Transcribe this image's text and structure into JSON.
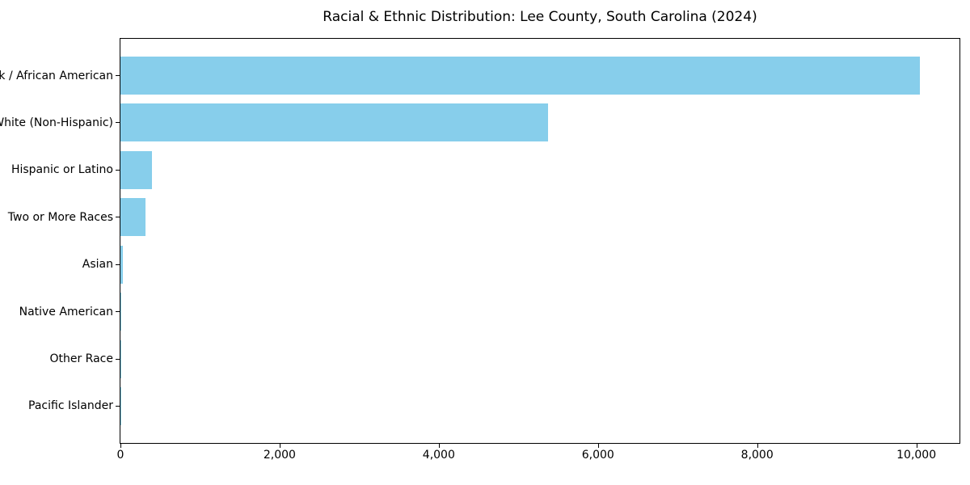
{
  "chart_data": {
    "type": "bar",
    "orientation": "horizontal",
    "title": "Racial & Ethnic Distribution: Lee County, South Carolina (2024)",
    "categories": [
      "Black / African American",
      "White (Non-Hispanic)",
      "Hispanic or Latino",
      "Two or More Races",
      "Asian",
      "Native American",
      "Other Race",
      "Pacific Islander"
    ],
    "values": [
      10040,
      5370,
      400,
      310,
      35,
      15,
      8,
      3
    ],
    "xlabel": "",
    "ylabel": "",
    "xlim": [
      0,
      10542
    ],
    "x_ticks": [
      0,
      2000,
      4000,
      6000,
      8000,
      10000
    ],
    "x_tick_labels": [
      "0",
      "2,000",
      "4,000",
      "6,000",
      "8,000",
      "10,000"
    ],
    "bar_color": "#87ceeb",
    "text_color": "#000000",
    "spine_color": "#000000",
    "grid": false,
    "legend": null
  }
}
